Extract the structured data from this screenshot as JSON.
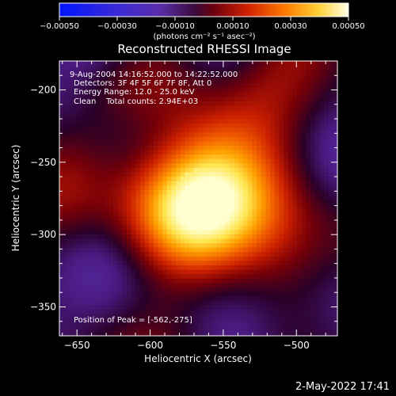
{
  "colorbar": {
    "vmin": -0.0005,
    "vmax": 0.0005,
    "tick_labels": [
      "-0.00050",
      "-0.00030",
      "-0.00010",
      "0.00010",
      "0.00030",
      "0.00050"
    ],
    "unit_label": "(photons cm⁻² s⁻¹ asec⁻²)"
  },
  "chart_data": {
    "type": "heatmap",
    "title": "Reconstructed RHESSI Image",
    "xlabel": "Heliocentric X (arcsec)",
    "ylabel": "Heliocentric Y (arcsec)",
    "xlim": [
      -662,
      -472
    ],
    "ylim": [
      -370,
      -180
    ],
    "xticks": [
      -650,
      -600,
      -550,
      -500
    ],
    "yticks": [
      -350,
      -300,
      -250,
      -200
    ],
    "xtick_labels": [
      "-650",
      "-600",
      "-550",
      "-500"
    ],
    "ytick_labels": [
      "-350",
      "-300",
      "-250",
      "-200"
    ],
    "annotations": [
      "9-Aug-2004 14:16:52.000 to 14:22:52.000",
      "Detectors: 3F 4F 5F 6F 7F 8F, Att 0",
      "Energy Range: 12.0 - 25.0 keV",
      "Clean    Total counts: 2.94E+03"
    ],
    "peak_label": "Position of Peak = [-562,-275]",
    "peak": [
      -562,
      -275
    ],
    "colormap": [
      "#0a1ee6",
      "#3c2cd2",
      "#5a2eb0",
      "#4a1a80",
      "#2a0028",
      "#780008",
      "#c81e00",
      "#f05a00",
      "#ffa000",
      "#ffe650",
      "#ffffd2"
    ]
  },
  "footer": {
    "date": "2-May-2022 17:41"
  }
}
